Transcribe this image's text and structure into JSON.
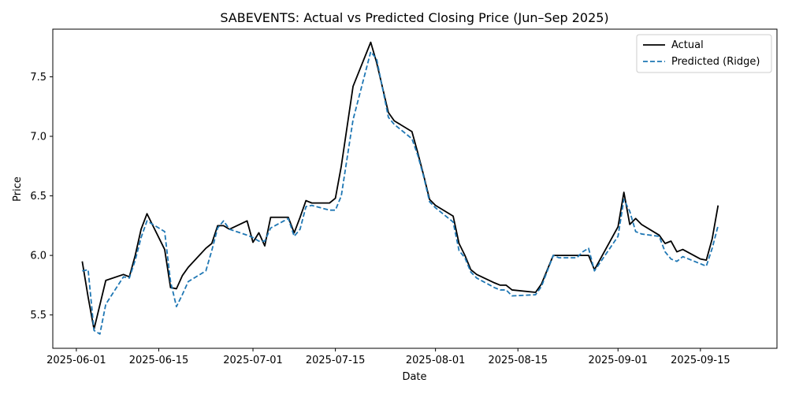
{
  "chart_data": {
    "type": "line",
    "title": "SABEVENTS: Actual vs Predicted Closing Price (Jun–Sep 2025)",
    "xlabel": "Date",
    "ylabel": "Price",
    "ylim": [
      5.22,
      7.9
    ],
    "xlim": [
      "2025-05-28",
      "2025-09-28"
    ],
    "x_ticks": [
      "2025-06-01",
      "2025-06-15",
      "2025-07-01",
      "2025-07-15",
      "2025-08-01",
      "2025-08-15",
      "2025-09-01",
      "2025-09-15"
    ],
    "y_ticks": [
      5.5,
      6.0,
      6.5,
      7.0,
      7.5
    ],
    "y_tick_labels": [
      "5.5",
      "6.0",
      "6.5",
      "7.0",
      "7.5"
    ],
    "grid": false,
    "legend": {
      "placement": "top-right",
      "entries": [
        "Actual",
        "Predicted (Ridge)"
      ]
    },
    "series": [
      {
        "name": "Actual",
        "color": "#000000",
        "style": "solid",
        "x": [
          "2025-06-02",
          "2025-06-03",
          "2025-06-04",
          "2025-06-06",
          "2025-06-09",
          "2025-06-10",
          "2025-06-11",
          "2025-06-12",
          "2025-06-13",
          "2025-06-16",
          "2025-06-17",
          "2025-06-18",
          "2025-06-19",
          "2025-06-20",
          "2025-06-23",
          "2025-06-24",
          "2025-06-25",
          "2025-06-26",
          "2025-06-27",
          "2025-06-30",
          "2025-07-01",
          "2025-07-02",
          "2025-07-03",
          "2025-07-04",
          "2025-07-07",
          "2025-07-08",
          "2025-07-09",
          "2025-07-10",
          "2025-07-11",
          "2025-07-14",
          "2025-07-15",
          "2025-07-16",
          "2025-07-18",
          "2025-07-21",
          "2025-07-22",
          "2025-07-24",
          "2025-07-25",
          "2025-07-28",
          "2025-07-29",
          "2025-07-30",
          "2025-07-31",
          "2025-08-01",
          "2025-08-04",
          "2025-08-05",
          "2025-08-06",
          "2025-08-07",
          "2025-08-08",
          "2025-08-11",
          "2025-08-12",
          "2025-08-13",
          "2025-08-14",
          "2025-08-18",
          "2025-08-19",
          "2025-08-21",
          "2025-08-22",
          "2025-08-25",
          "2025-08-26",
          "2025-08-27",
          "2025-08-28",
          "2025-09-01",
          "2025-09-02",
          "2025-09-03",
          "2025-09-04",
          "2025-09-05",
          "2025-09-08",
          "2025-09-09",
          "2025-09-10",
          "2025-09-11",
          "2025-09-12",
          "2025-09-15",
          "2025-09-16",
          "2025-09-17",
          "2025-09-18"
        ],
        "values": [
          5.95,
          5.65,
          5.38,
          5.79,
          5.84,
          5.82,
          6.0,
          6.22,
          6.35,
          6.05,
          5.73,
          5.72,
          5.83,
          5.9,
          6.06,
          6.1,
          6.25,
          6.25,
          6.22,
          6.29,
          6.11,
          6.19,
          6.08,
          6.32,
          6.32,
          6.19,
          6.32,
          6.46,
          6.44,
          6.44,
          6.48,
          6.75,
          7.42,
          7.79,
          7.62,
          7.2,
          7.13,
          7.04,
          6.86,
          6.67,
          6.47,
          6.42,
          6.33,
          6.1,
          6.0,
          5.88,
          5.84,
          5.77,
          5.75,
          5.75,
          5.71,
          5.69,
          5.76,
          6.0,
          6.0,
          6.0,
          6.0,
          6.0,
          5.88,
          6.24,
          6.53,
          6.26,
          6.31,
          6.26,
          6.17,
          6.1,
          6.12,
          6.03,
          6.05,
          5.97,
          5.96,
          6.14,
          6.42
        ]
      },
      {
        "name": "Predicted (Ridge)",
        "color": "#1f77b4",
        "style": "dashed",
        "x": [
          "2025-06-02",
          "2025-06-03",
          "2025-06-04",
          "2025-06-05",
          "2025-06-06",
          "2025-06-09",
          "2025-06-10",
          "2025-06-11",
          "2025-06-12",
          "2025-06-13",
          "2025-06-16",
          "2025-06-17",
          "2025-06-18",
          "2025-06-19",
          "2025-06-20",
          "2025-06-23",
          "2025-06-24",
          "2025-06-25",
          "2025-06-26",
          "2025-06-27",
          "2025-06-30",
          "2025-07-01",
          "2025-07-02",
          "2025-07-03",
          "2025-07-04",
          "2025-07-07",
          "2025-07-08",
          "2025-07-09",
          "2025-07-10",
          "2025-07-11",
          "2025-07-14",
          "2025-07-15",
          "2025-07-16",
          "2025-07-18",
          "2025-07-21",
          "2025-07-22",
          "2025-07-24",
          "2025-07-25",
          "2025-07-28",
          "2025-07-29",
          "2025-07-30",
          "2025-07-31",
          "2025-08-01",
          "2025-08-04",
          "2025-08-05",
          "2025-08-06",
          "2025-08-07",
          "2025-08-08",
          "2025-08-11",
          "2025-08-12",
          "2025-08-13",
          "2025-08-14",
          "2025-08-18",
          "2025-08-19",
          "2025-08-21",
          "2025-08-22",
          "2025-08-25",
          "2025-08-26",
          "2025-08-27",
          "2025-08-28",
          "2025-09-01",
          "2025-09-02",
          "2025-09-03",
          "2025-09-04",
          "2025-09-05",
          "2025-09-08",
          "2025-09-09",
          "2025-09-10",
          "2025-09-11",
          "2025-09-12",
          "2025-09-15",
          "2025-09-16",
          "2025-09-17",
          "2025-09-18"
        ],
        "values": [
          5.87,
          5.88,
          5.37,
          5.34,
          5.59,
          5.82,
          5.81,
          5.96,
          6.15,
          6.29,
          6.2,
          5.78,
          5.57,
          5.67,
          5.78,
          5.87,
          6.04,
          6.23,
          6.29,
          6.22,
          6.17,
          6.15,
          6.12,
          6.12,
          6.23,
          6.31,
          6.16,
          6.22,
          6.41,
          6.42,
          6.38,
          6.38,
          6.5,
          7.14,
          7.71,
          7.65,
          7.16,
          7.1,
          6.98,
          6.84,
          6.66,
          6.45,
          6.4,
          6.28,
          6.04,
          5.98,
          5.86,
          5.81,
          5.73,
          5.71,
          5.71,
          5.66,
          5.67,
          5.74,
          6.0,
          5.98,
          5.98,
          6.03,
          6.06,
          5.87,
          6.16,
          6.47,
          6.37,
          6.2,
          6.18,
          6.16,
          6.03,
          5.97,
          5.95,
          5.99,
          5.93,
          5.91,
          6.06,
          6.25
        ]
      }
    ]
  }
}
